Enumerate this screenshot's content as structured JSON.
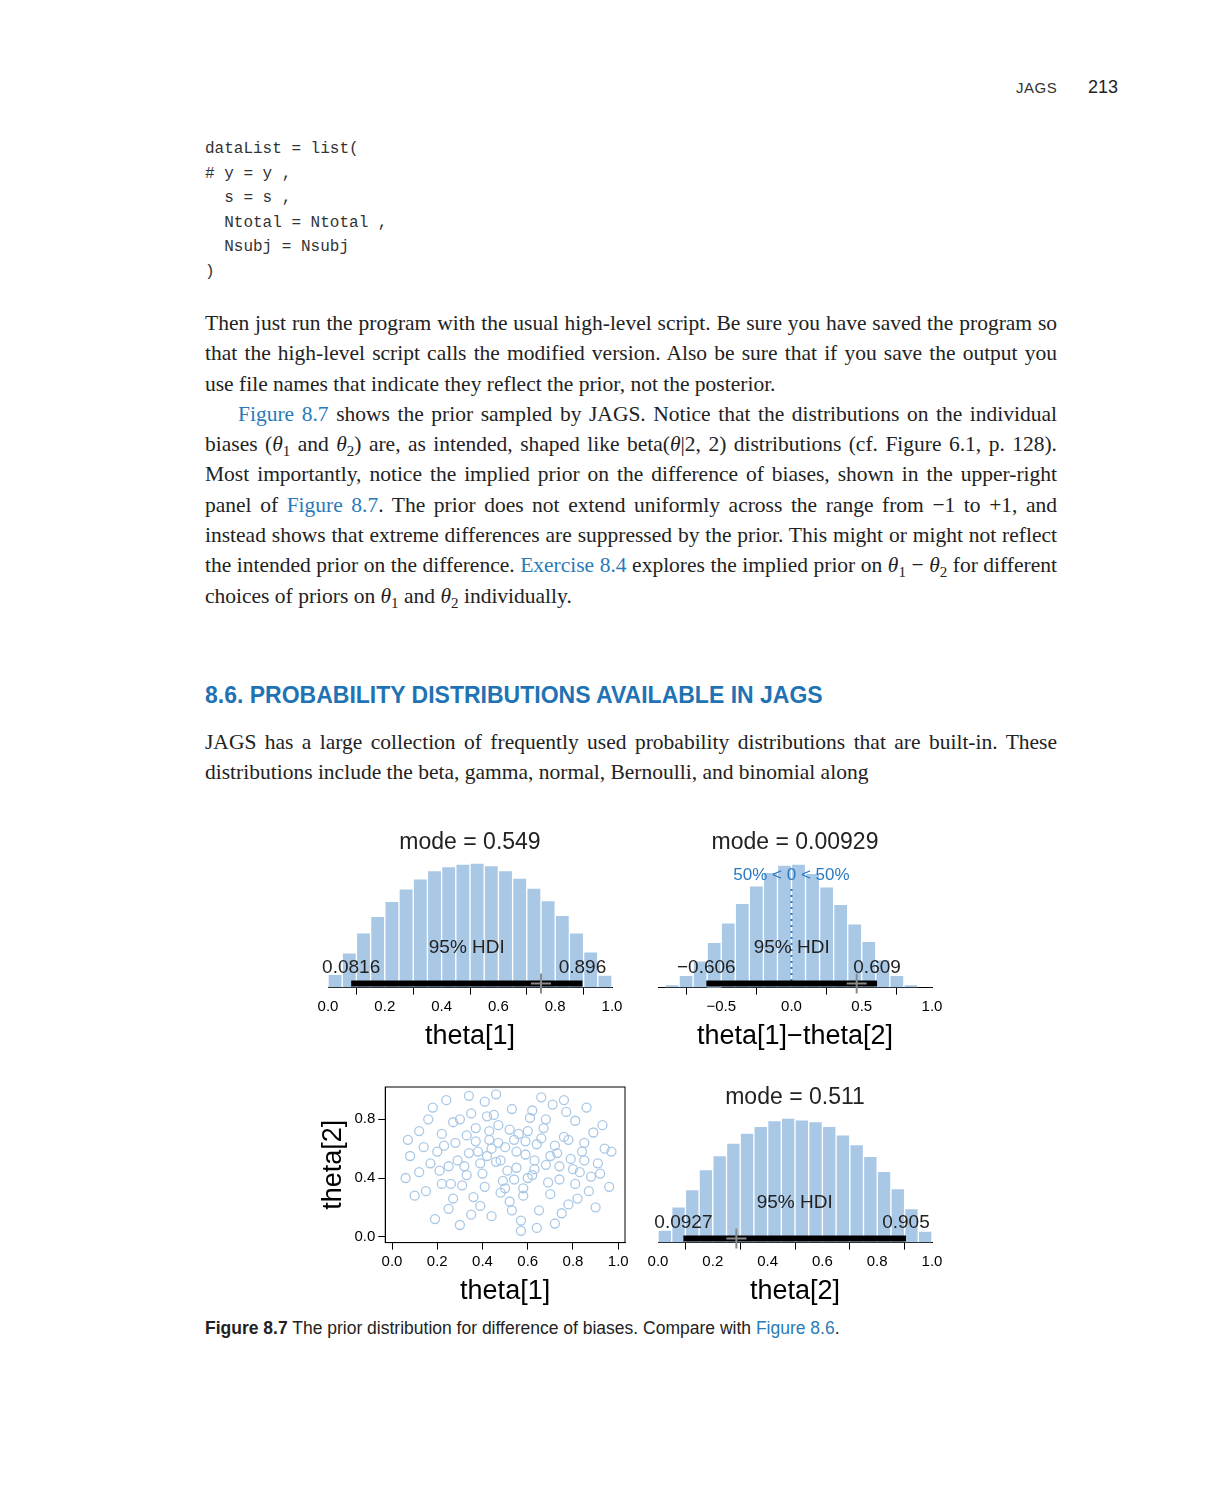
{
  "header": {
    "title": "JAGS",
    "page": 213
  },
  "code": [
    "dataList = list(",
    "# y = y ,",
    "  s = s ,",
    "  Ntotal = Ntotal ,",
    "  Nsubj = Nsubj",
    ")"
  ],
  "paragraphs": [
    [
      {
        "text": "Then just run the program with the usual high-level script. Be sure you have saved the program so that the high-level script calls the modified version. Also be sure that if you save the output you use file names that indicate they reflect the prior, not the posterior."
      }
    ],
    [
      {
        "text": "Figure 8.7",
        "style": "link"
      },
      {
        "text": " shows the prior sampled by JAGS. Notice that the distributions on the individual biases ("
      },
      {
        "text": "θ",
        "style": "italic"
      },
      {
        "text": "1",
        "style": "sub"
      },
      {
        "text": " and "
      },
      {
        "text": "θ",
        "style": "italic"
      },
      {
        "text": "2",
        "style": "sub"
      },
      {
        "text": ") are, as intended, shaped like beta("
      },
      {
        "text": "θ",
        "style": "italic"
      },
      {
        "text": "|2, 2) distributions (cf. Figure 6.1, p. 128). Most importantly, notice the implied prior on the difference of biases, shown in the upper-right panel of "
      },
      {
        "text": "Figure 8.7",
        "style": "link"
      },
      {
        "text": ". The prior does not extend uniformly across the range from −1 to +1, and instead shows that extreme differences are suppressed by the prior. This might or might not reflect the intended prior on the difference. "
      },
      {
        "text": "Exercise 8.4",
        "style": "link"
      },
      {
        "text": " explores the implied prior on "
      },
      {
        "text": "θ",
        "style": "italic"
      },
      {
        "text": "1",
        "style": "sub"
      },
      {
        "text": " − "
      },
      {
        "text": "θ",
        "style": "italic"
      },
      {
        "text": "2",
        "style": "sub"
      },
      {
        "text": " for different choices of priors on "
      },
      {
        "text": "θ",
        "style": "italic"
      },
      {
        "text": "1",
        "style": "sub"
      },
      {
        "text": " and "
      },
      {
        "text": "θ",
        "style": "italic"
      },
      {
        "text": "2",
        "style": "sub"
      },
      {
        "text": " individually."
      }
    ]
  ],
  "section": {
    "number": "8.6.",
    "title": "PROBABILITY DISTRIBUTIONS AVAILABLE IN JAGS"
  },
  "paragraphs_after": [
    [
      {
        "text": "JAGS has a large collection of frequently used probability distributions that are built-in. These distributions include the beta, gamma, normal, Bernoulli, and binomial along"
      }
    ]
  ],
  "caption": [
    {
      "text": "Figure 8.7",
      "style": "bold"
    },
    {
      "text": " The prior distribution for difference of biases. Compare with "
    },
    {
      "text": "Figure 8.6",
      "style": "link"
    },
    {
      "text": "."
    }
  ],
  "chart_data": [
    {
      "type": "histogram",
      "title": "mode = 0.549",
      "xlabel": "theta[1]",
      "bins": [
        0,
        0.05,
        0.1,
        0.15,
        0.2,
        0.25,
        0.3,
        0.35,
        0.4,
        0.45,
        0.5,
        0.55,
        0.6,
        0.65,
        0.7,
        0.75,
        0.8,
        0.85,
        0.9,
        0.95,
        1.0
      ],
      "counts": [
        0.16,
        0.42,
        0.66,
        0.86,
        1.04,
        1.19,
        1.31,
        1.41,
        1.46,
        1.49,
        1.5,
        1.47,
        1.41,
        1.32,
        1.2,
        1.05,
        0.87,
        0.66,
        0.43,
        0.15
      ],
      "color": "#a9c8e6",
      "xlim": [
        0,
        1.0
      ],
      "xticks": [
        {
          "value": 0,
          "label": "0.0"
        },
        {
          "value": 0.2,
          "label": "0.2"
        },
        {
          "value": 0.4,
          "label": "0.4"
        },
        {
          "value": 0.6,
          "label": "0.6"
        },
        {
          "value": 0.8,
          "label": "0.8"
        },
        {
          "value": 1.0,
          "label": "1.0"
        }
      ],
      "ylim": [
        0,
        1.55
      ],
      "tick_labels": "x",
      "hdi": {
        "label": "95% HDI",
        "low": 0.0816,
        "high": 0.896
      },
      "data_value": 0.75
    },
    {
      "type": "histogram",
      "title": "mode = 0.00929",
      "xlabel": "theta[1]−theta[2]",
      "bins": [
        -0.9,
        -0.8,
        -0.7,
        -0.6,
        -0.5,
        -0.4,
        -0.3,
        -0.2,
        -0.1,
        0,
        0.1,
        0.2,
        0.3,
        0.4,
        0.5,
        0.6,
        0.7,
        0.8,
        0.9
      ],
      "counts": [
        0.03,
        0.12,
        0.26,
        0.44,
        0.63,
        0.82,
        0.99,
        1.12,
        1.19,
        1.2,
        1.11,
        0.98,
        0.81,
        0.62,
        0.45,
        0.27,
        0.12,
        0.03
      ],
      "color": "#a9c8e6",
      "xlim": [
        -0.95,
        1.0
      ],
      "xticks": [
        {
          "value": -0.5,
          "label": "−0.5"
        },
        {
          "value": 0,
          "label": "0.0"
        },
        {
          "value": 0.5,
          "label": "0.5"
        },
        {
          "value": 1.0,
          "label": "1.0"
        }
      ],
      "ylim": [
        0,
        1.25
      ],
      "tick_labels": "x",
      "hdi": {
        "label": "95% HDI",
        "low": {
          "value": -0.606,
          "label": "−0.606"
        },
        "high": 0.609
      },
      "comparison": {
        "value": 0,
        "label": "50% < 0 < 50%",
        "color": "#2a78c0"
      },
      "data_value": 0.464
    },
    {
      "type": "scatter",
      "xlabel": "theta[1]",
      "ylabel": "theta[2]",
      "color": "#a9c8e6",
      "marker": "open_circle",
      "xlim": [
        -0.03,
        1.03
      ],
      "ylim": [
        -0.04,
        1.02
      ],
      "xticks": [
        {
          "value": 0,
          "label": "0.0"
        },
        {
          "value": 0.2,
          "label": "0.2"
        },
        {
          "value": 0.4,
          "label": "0.4"
        },
        {
          "value": 0.6,
          "label": "0.6"
        },
        {
          "value": 0.8,
          "label": "0.8"
        },
        {
          "value": 1.0,
          "label": "1.0"
        }
      ],
      "yticks": [
        {
          "value": 0,
          "label": "0.0"
        },
        {
          "value": 0.4,
          "label": "0.4"
        },
        {
          "value": 0.8,
          "label": "0.8"
        }
      ],
      "x": [
        0.08,
        0.12,
        0.15,
        0.18,
        0.21,
        0.23,
        0.25,
        0.27,
        0.29,
        0.31,
        0.33,
        0.35,
        0.36,
        0.38,
        0.4,
        0.41,
        0.43,
        0.44,
        0.46,
        0.47,
        0.49,
        0.5,
        0.52,
        0.53,
        0.55,
        0.56,
        0.58,
        0.59,
        0.61,
        0.62,
        0.64,
        0.65,
        0.67,
        0.68,
        0.7,
        0.71,
        0.73,
        0.74,
        0.76,
        0.78,
        0.79,
        0.81,
        0.83,
        0.85,
        0.87,
        0.89,
        0.91,
        0.94,
        0.06,
        0.1,
        0.14,
        0.17,
        0.19,
        0.22,
        0.24,
        0.26,
        0.28,
        0.3,
        0.32,
        0.34,
        0.37,
        0.39,
        0.42,
        0.45,
        0.48,
        0.51,
        0.54,
        0.57,
        0.6,
        0.63,
        0.66,
        0.69,
        0.72,
        0.75,
        0.77,
        0.8,
        0.82,
        0.84,
        0.86,
        0.88,
        0.9,
        0.93,
        0.96,
        0.2,
        0.33,
        0.44,
        0.52,
        0.6,
        0.7,
        0.48,
        0.37,
        0.58,
        0.66,
        0.41,
        0.55,
        0.62,
        0.3,
        0.46,
        0.57,
        0.35,
        0.72,
        0.16,
        0.78,
        0.25,
        0.85,
        0.12,
        0.92,
        0.5,
        0.63,
        0.43,
        0.68,
        0.39,
        0.54,
        0.74,
        0.27,
        0.81,
        0.47,
        0.59,
        0.34,
        0.64,
        0.07,
        0.97,
        0.53,
        0.42,
        0.76,
        0.22
      ],
      "y": [
        0.55,
        0.72,
        0.31,
        0.88,
        0.45,
        0.62,
        0.19,
        0.78,
        0.52,
        0.35,
        0.69,
        0.84,
        0.27,
        0.58,
        0.43,
        0.92,
        0.66,
        0.14,
        0.51,
        0.76,
        0.38,
        0.61,
        0.24,
        0.87,
        0.47,
        0.7,
        0.33,
        0.56,
        0.81,
        0.42,
        0.63,
        0.18,
        0.74,
        0.49,
        0.29,
        0.9,
        0.57,
        0.39,
        0.68,
        0.22,
        0.53,
        0.79,
        0.44,
        0.64,
        0.31,
        0.71,
        0.5,
        0.6,
        0.4,
        0.28,
        0.61,
        0.5,
        0.12,
        0.7,
        0.93,
        0.36,
        0.64,
        0.08,
        0.48,
        0.57,
        0.74,
        0.21,
        0.55,
        0.83,
        0.3,
        0.45,
        0.66,
        0.11,
        0.72,
        0.52,
        0.95,
        0.37,
        0.62,
        0.16,
        0.85,
        0.46,
        0.26,
        0.58,
        0.88,
        0.41,
        0.2,
        0.76,
        0.34,
        0.58,
        0.42,
        0.6,
        0.73,
        0.4,
        0.55,
        0.52,
        0.65,
        0.28,
        0.67,
        0.34,
        0.58,
        0.86,
        0.8,
        0.97,
        0.04,
        0.15,
        0.09,
        0.8,
        0.66,
        0.48,
        0.52,
        0.44,
        0.43,
        0.33,
        0.46,
        0.72,
        0.8,
        0.5,
        0.39,
        0.48,
        0.26,
        0.36,
        0.64,
        0.65,
        0.96,
        0.06,
        0.66,
        0.58,
        0.18,
        0.82,
        0.93,
        0.36
      ]
    },
    {
      "type": "histogram",
      "title": "mode = 0.511",
      "xlabel": "theta[2]",
      "bins": [
        0,
        0.05,
        0.1,
        0.15,
        0.2,
        0.25,
        0.3,
        0.35,
        0.4,
        0.45,
        0.5,
        0.55,
        0.6,
        0.65,
        0.7,
        0.75,
        0.8,
        0.85,
        0.9,
        0.95,
        1.0
      ],
      "counts": [
        0.15,
        0.43,
        0.64,
        0.88,
        1.05,
        1.2,
        1.32,
        1.4,
        1.47,
        1.5,
        1.48,
        1.46,
        1.4,
        1.3,
        1.18,
        1.04,
        0.86,
        0.65,
        0.41,
        0.14
      ],
      "color": "#a9c8e6",
      "xlim": [
        0,
        1.0
      ],
      "xticks": [
        {
          "value": 0,
          "label": "0.0"
        },
        {
          "value": 0.2,
          "label": "0.2"
        },
        {
          "value": 0.4,
          "label": "0.4"
        },
        {
          "value": 0.6,
          "label": "0.6"
        },
        {
          "value": 0.8,
          "label": "0.8"
        },
        {
          "value": 1.0,
          "label": "1.0"
        }
      ],
      "ylim": [
        0,
        1.55
      ],
      "tick_labels": "x",
      "hdi": {
        "label": "95% HDI",
        "low": 0.0927,
        "high": 0.905
      },
      "data_value": 0.286
    }
  ]
}
